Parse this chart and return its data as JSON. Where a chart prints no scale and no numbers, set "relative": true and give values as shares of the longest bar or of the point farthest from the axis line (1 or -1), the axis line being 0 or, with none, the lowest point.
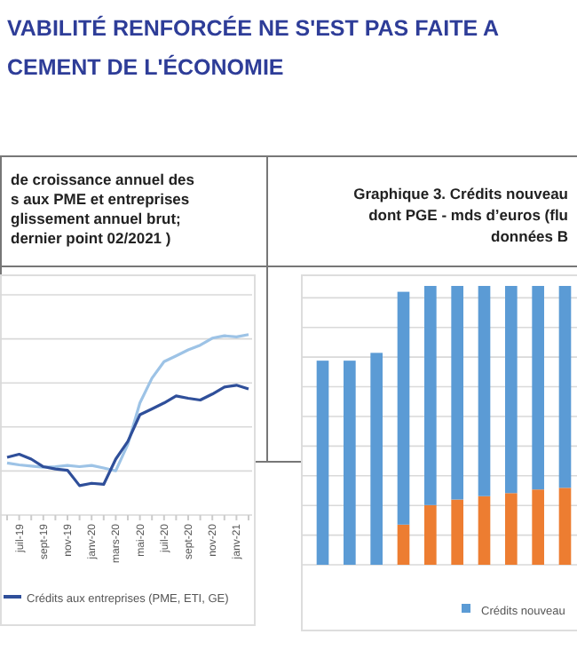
{
  "chart_data": [
    {
      "type": "other",
      "title": "VABILITÉ RENFORCÉE NE S'EST PAS FAITE A\nCEMENT DE L'ÉCONOMIE"
    },
    {
      "type": "line",
      "relative": true,
      "title": "de croissance annuel des\ns aux PME et entreprises\nglissement annuel brut;\ndernier point 02/2021 )",
      "grid": "y",
      "legend": "bottom",
      "categories": [
        null,
        "juil-19",
        null,
        "sept-19",
        null,
        "nov-19",
        null,
        "janv-20",
        null,
        "mars-20",
        null,
        "mai-20",
        null,
        "juil-20",
        null,
        "sept-20",
        null,
        "nov-20",
        null,
        "janv-21",
        null
      ],
      "series": [
        {
          "name": "Crédits aux entreprises (PME, ETI, GE)",
          "color": "#2f4f9a",
          "values": [
            0.32,
            0.337,
            0.31,
            0.268,
            0.255,
            0.248,
            0.163,
            0.176,
            0.17,
            0.31,
            0.408,
            0.556,
            0.588,
            0.621,
            0.66,
            0.647,
            0.637,
            0.67,
            0.709,
            0.719,
            0.699
          ]
        },
        {
          "color": "#9dc3e6",
          "values": [
            0.288,
            0.278,
            0.271,
            0.265,
            0.268,
            0.275,
            0.268,
            0.275,
            0.261,
            0.245,
            0.392,
            0.621,
            0.758,
            0.85,
            0.882,
            0.915,
            0.941,
            0.98,
            0.993,
            0.987,
            1
          ]
        }
      ]
    },
    {
      "type": "bar",
      "stacked": true,
      "relative": true,
      "title": "Graphique 3. Crédits nouveau\ndont PGE  - mds d’euros (flu\ndonnées B",
      "grid": "y",
      "legend": "bottom",
      "categories": [
        null,
        null,
        null,
        null,
        null,
        null,
        null,
        null,
        null,
        null
      ],
      "series": [
        {
          "color": "#ed7d31",
          "values": [
            null,
            null,
            null,
            0.144,
            0.214,
            0.234,
            0.246,
            0.257,
            0.27,
            0.276
          ]
        },
        {
          "name": "Crédits nouveau",
          "color": "#5b9bd5",
          "values": [
            0.732,
            0.732,
            0.76,
            0.835,
            0.786,
            0.766,
            0.754,
            0.743,
            0.73,
            0.724
          ]
        }
      ]
    }
  ]
}
